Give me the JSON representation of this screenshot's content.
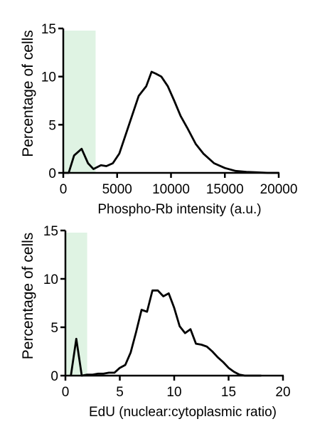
{
  "chart_data": [
    {
      "type": "line",
      "xlabel": "Phospho-Rb intensity (a.u.)",
      "ylabel": "Percentage of cells",
      "xlim": [
        0,
        20000
      ],
      "ylim": [
        0,
        15
      ],
      "xticks": [
        0,
        5000,
        10000,
        15000,
        20000
      ],
      "yticks": [
        0,
        5,
        10,
        15
      ],
      "shaded_region": {
        "x_start": 0,
        "x_end": 3000,
        "color": "#dff3e3"
      },
      "series": [
        {
          "color": "#000000",
          "x": [
            0,
            500,
            1000,
            1700,
            2300,
            2800,
            3500,
            4000,
            4600,
            5200,
            5800,
            6400,
            7000,
            7700,
            8200,
            8600,
            9100,
            9700,
            10300,
            10900,
            11500,
            12300,
            13000,
            14000,
            15000,
            16000,
            17000,
            18000,
            19000,
            20000
          ],
          "y": [
            0,
            0,
            1.8,
            2.5,
            1.0,
            0.4,
            0.8,
            0.7,
            1.0,
            2.0,
            4.0,
            6.0,
            8.0,
            9.0,
            10.5,
            10.3,
            10.0,
            9.0,
            7.5,
            5.9,
            4.7,
            3.0,
            2.0,
            1.0,
            0.5,
            0.2,
            0.1,
            0.05,
            0,
            0
          ]
        }
      ]
    },
    {
      "type": "line",
      "xlabel": "EdU (nuclear:cytoplasmic ratio)",
      "ylabel": "Percentage of cells",
      "xlim": [
        0,
        20
      ],
      "ylim": [
        0,
        15
      ],
      "xticks": [
        0,
        5,
        10,
        15,
        20
      ],
      "yticks": [
        0,
        5,
        10,
        15
      ],
      "shaded_region": {
        "x_start": 0,
        "x_end": 2,
        "color": "#dff3e3"
      },
      "series": [
        {
          "color": "#000000",
          "x": [
            0.5,
            1.0,
            1.5,
            2.0,
            2.5,
            3.0,
            3.5,
            4.0,
            4.5,
            5.0,
            5.5,
            6.0,
            6.5,
            7.0,
            7.5,
            8.0,
            8.5,
            9.0,
            9.5,
            10.0,
            10.5,
            11.0,
            11.5,
            12.0,
            12.5,
            13.0,
            13.5,
            14.0,
            14.5,
            15.0,
            15.5,
            16.0,
            16.5,
            17.0,
            18.0
          ],
          "y": [
            0,
            3.8,
            0,
            0.1,
            0.1,
            0.2,
            0.2,
            0.3,
            0.3,
            0.8,
            1.1,
            2.4,
            4.5,
            6.8,
            6.6,
            8.8,
            8.8,
            8.2,
            8.5,
            7.0,
            5.1,
            4.4,
            4.8,
            3.3,
            3.2,
            3.0,
            2.5,
            1.9,
            1.4,
            0.8,
            0.4,
            0.1,
            0,
            0,
            0
          ]
        }
      ]
    }
  ]
}
